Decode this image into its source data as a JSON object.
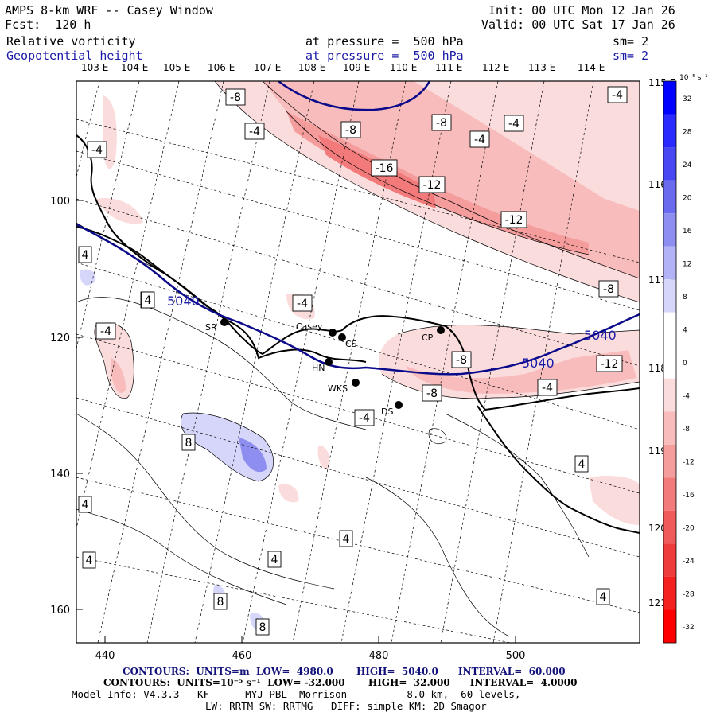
{
  "header": {
    "title": "AMPS 8-km WRF -- Casey Window",
    "init": "Init: 00 UTC Mon 12 Jan 26",
    "fcst": "Fcst:  120 h",
    "valid": "Valid: 00 UTC Sat 17 Jan 26",
    "field1": {
      "name": "Relative vorticity",
      "level": "at pressure =  500 hPa",
      "sm": "sm= 2"
    },
    "field2": {
      "name": "Geopotential height",
      "level": "at pressure =  500 hPa",
      "sm": "sm= 2"
    }
  },
  "map": {
    "top_lon_labels": [
      "103 E",
      "104 E",
      "105 E",
      "106 E",
      "107 E",
      "108 E",
      "109 E",
      "110 E",
      "111 E",
      "112 E",
      "113 E",
      "114 E"
    ],
    "right_lon_labels": [
      "115 E",
      "116 E",
      "117 E",
      "118 E",
      "119 E",
      "120 E",
      "121 E"
    ],
    "x_ticks": [
      "440",
      "460",
      "480",
      "500"
    ],
    "y_ticks": [
      "100",
      "120",
      "140",
      "160"
    ],
    "stations": [
      {
        "id": "SR",
        "label": "SR"
      },
      {
        "id": "Casey",
        "label": "Casey"
      },
      {
        "id": "CS",
        "label": "CS"
      },
      {
        "id": "HN",
        "label": "HN"
      },
      {
        "id": "CP",
        "label": "CP"
      },
      {
        "id": "WKS",
        "label": "WKS"
      },
      {
        "id": "DS",
        "label": "DS"
      }
    ],
    "height_contour_labels": [
      "5040",
      "5040",
      "5040"
    ],
    "vorticity_labels": [
      "-8",
      "-4",
      "-8",
      "-8",
      "-4",
      "-4",
      "-16",
      "-12",
      "-12",
      "-8",
      "-4",
      "4",
      "4",
      "-4",
      "-4",
      "-4",
      "-8",
      "-12",
      "-8",
      "-4",
      "8",
      "4",
      "-4",
      "4",
      "4",
      "4",
      "4",
      "4",
      "8",
      "8",
      "4"
    ]
  },
  "colorbar": {
    "unit": "10⁻⁵ s⁻¹",
    "labels": [
      "32",
      "28",
      "24",
      "20",
      "16",
      "12",
      "8",
      "4",
      "0",
      "-4",
      "-8",
      "-12",
      "-16",
      "-20",
      "-24",
      "-28",
      "-32"
    ],
    "colors": [
      "#0000ff",
      "#2a2aff",
      "#4848f2",
      "#6a6aee",
      "#8e8ef0",
      "#b2b2f6",
      "#d6d6fb",
      "#ffffff",
      "#ffffff",
      "#fbdcdc",
      "#f8bcbc",
      "#f59c9c",
      "#f27a7a",
      "#f05a5a",
      "#ee3c3c",
      "#f42020",
      "#ff0000"
    ]
  },
  "footer": {
    "contours1": "CONTOURS:  UNITS=m  LOW=  4980.0       HIGH=  5040.0      INTERVAL=  60.000",
    "contours2": "CONTOURS:  UNITS=10⁻⁵ s⁻¹  LOW= -32.000       HIGH=  32.000      INTERVAL=  4.0000",
    "model1": "Model Info: V4.3.3   KF      MYJ PBL  Morrison          8.0 km,  60 levels,",
    "model2": "LW: RRTM SW: RRTMG   DIFF: simple KM: 2D Smagor"
  }
}
